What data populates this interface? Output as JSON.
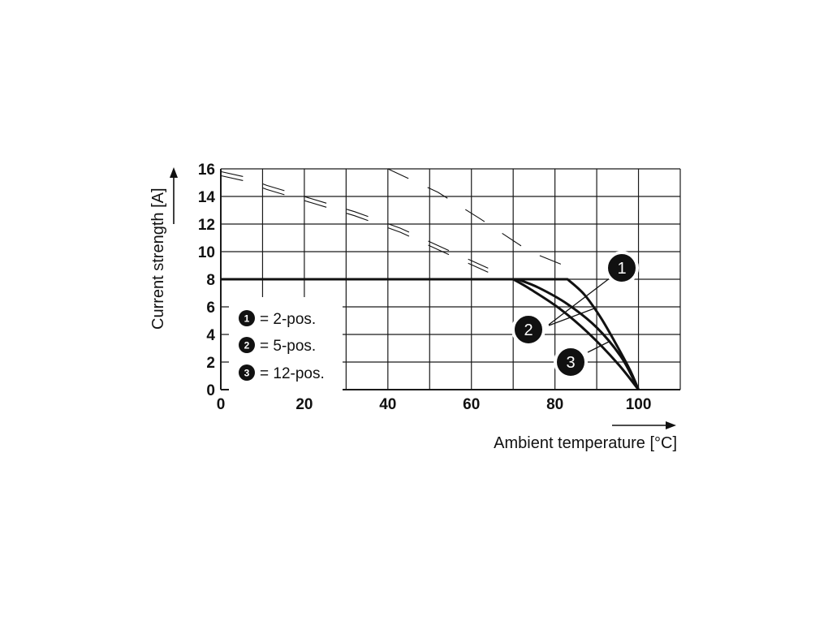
{
  "chart_data": {
    "type": "line",
    "xlabel": "Ambient temperature [°C]",
    "ylabel": "Current strength [A]",
    "xlim": [
      0,
      110
    ],
    "ylim": [
      0,
      16
    ],
    "x_ticks": [
      "0",
      "20",
      "40",
      "60",
      "80",
      "100"
    ],
    "y_ticks": [
      "0",
      "2",
      "4",
      "6",
      "8",
      "10",
      "12",
      "14",
      "16"
    ],
    "grid": true,
    "legend": {
      "placement": "bottom-left",
      "entries": [
        {
          "marker": "1",
          "label": "= 2-pos."
        },
        {
          "marker": "2",
          "label": "= 5-pos."
        },
        {
          "marker": "3",
          "label": "= 12-pos."
        }
      ]
    },
    "series": [
      {
        "marker": "1",
        "x": [
          0,
          83,
          87,
          91,
          95,
          98,
          100
        ],
        "y": [
          8,
          8,
          6.9,
          5.2,
          3.1,
          1.4,
          0
        ]
      },
      {
        "marker": "2",
        "x": [
          0,
          71,
          76,
          83,
          90,
          96,
          100
        ],
        "y": [
          8,
          8,
          7.4,
          6.2,
          4.5,
          2.3,
          0
        ]
      },
      {
        "marker": "3",
        "x": [
          0,
          70,
          74,
          81,
          88,
          95,
          100
        ],
        "y": [
          8,
          8,
          7.3,
          5.9,
          4.1,
          1.9,
          0
        ]
      }
    ],
    "dashed_segments": [
      {
        "x": [
          0,
          6,
          11,
          21,
          32,
          43,
          53,
          64
        ],
        "y": [
          15.8,
          15.4,
          14.8,
          13.9,
          12.9,
          11.7,
          10.3,
          8.8
        ]
      },
      {
        "x": [
          40,
          52,
          62,
          74,
          83
        ],
        "y": [
          16,
          14.3,
          12.4,
          10,
          8.9
        ]
      }
    ],
    "colors": {
      "line": "#111111",
      "grid": "#1a1a1a",
      "marker": "#111111"
    }
  }
}
